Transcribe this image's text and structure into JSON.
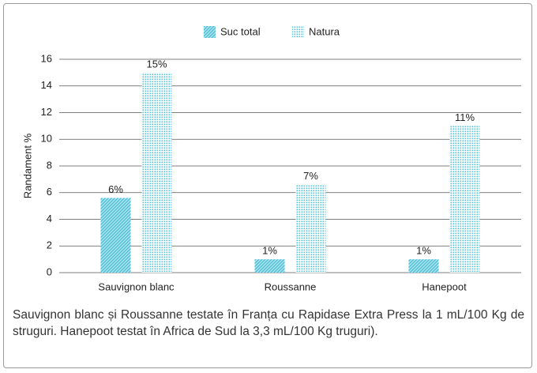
{
  "chart_data": {
    "type": "bar",
    "categories": [
      "Sauvignon blanc",
      "Roussanne",
      "Hanepoot"
    ],
    "series": [
      {
        "name": "Suc total",
        "color": "#4fc1d8",
        "pattern": "hatch",
        "values": [
          5.6,
          1.0,
          1.0
        ],
        "value_labels": [
          "6%",
          "1%",
          "1%"
        ]
      },
      {
        "name": "Natura",
        "color": "#4fc1d8",
        "pattern": "dots",
        "values": [
          15.0,
          6.6,
          11.0
        ],
        "value_labels": [
          "15%",
          "7%",
          "11%"
        ]
      }
    ],
    "ylabel": "Randament %",
    "ylim": [
      0,
      16
    ],
    "yticks": [
      0,
      2,
      4,
      6,
      8,
      10,
      12,
      14,
      16
    ],
    "grid": true,
    "legend": "top",
    "caption": "Sauvignon blanc și Roussanne testate în Franța cu Rapidase Extra Press la 1 mL/100 Kg de struguri. Hanepoot testat în Africa de Sud la 3,3 mL/100 Kg truguri)."
  }
}
